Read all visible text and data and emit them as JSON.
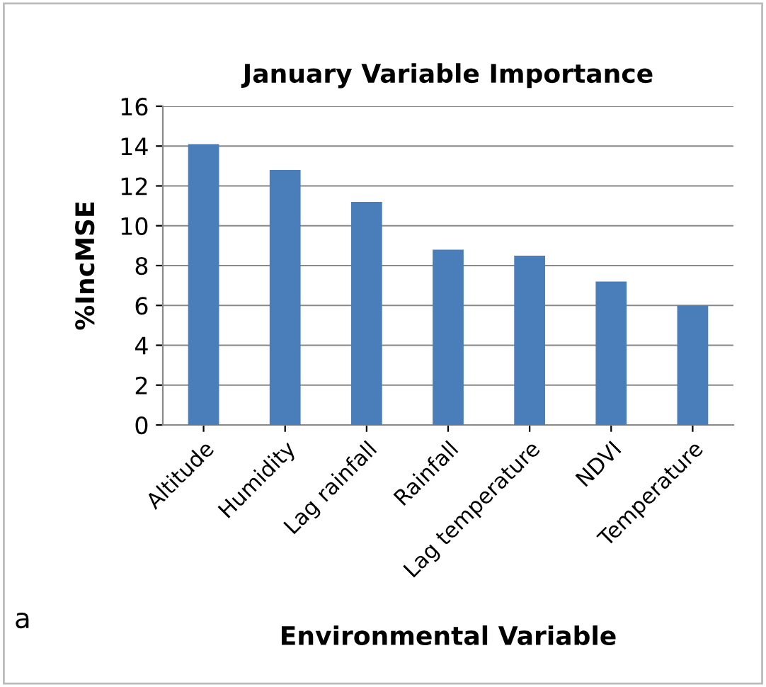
{
  "chart_data": {
    "type": "bar",
    "title": "January Variable Importance",
    "xlabel": "Environmental Variable",
    "ylabel": "%IncMSE",
    "categories": [
      "Altitude",
      "Humidity",
      "Lag rainfall",
      "Rainfall",
      "Lag temperature",
      "NDVI",
      "Temperature"
    ],
    "values": [
      14.1,
      12.8,
      11.2,
      8.8,
      8.5,
      7.2,
      6.0
    ],
    "color": "#4a7ebb",
    "ylim": [
      0,
      16
    ],
    "yticks": [
      0,
      2,
      4,
      6,
      8,
      10,
      12,
      14,
      16
    ],
    "grid": "y",
    "legend": false,
    "annotations": [
      "a"
    ]
  }
}
